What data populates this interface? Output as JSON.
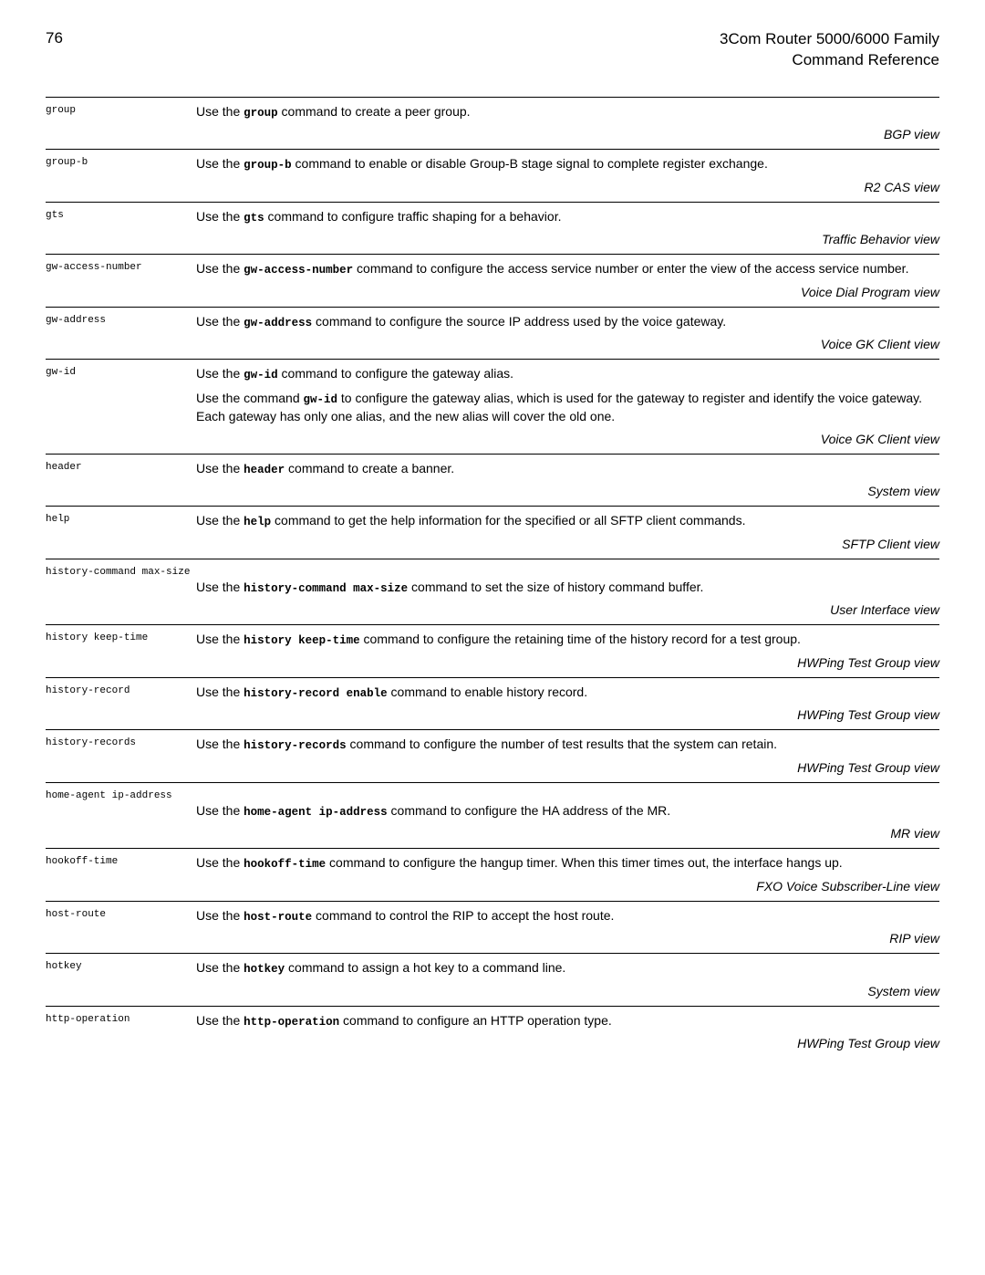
{
  "page": {
    "number": "76",
    "header_line1": "3Com Router 5000/6000 Family",
    "header_line2": "Command Reference"
  },
  "entries": [
    {
      "cmd": "group",
      "desc_parts": [
        {
          "t": "Use the ",
          "m": false
        },
        {
          "t": "group",
          "m": true
        },
        {
          "t": " command to create a peer group.",
          "m": false
        }
      ],
      "view": "BGP view"
    },
    {
      "cmd": "group-b",
      "desc_parts": [
        {
          "t": "Use the ",
          "m": false
        },
        {
          "t": "group-b",
          "m": true
        },
        {
          "t": " command to enable or disable Group-B stage signal to complete register exchange.",
          "m": false
        }
      ],
      "view": "R2 CAS view"
    },
    {
      "cmd": "gts",
      "desc_parts": [
        {
          "t": "Use the ",
          "m": false
        },
        {
          "t": "gts",
          "m": true
        },
        {
          "t": " command to configure traffic shaping for a behavior.",
          "m": false
        }
      ],
      "view": "Traffic Behavior view"
    },
    {
      "cmd": "gw-access-number",
      "desc_parts": [
        {
          "t": "Use the ",
          "m": false
        },
        {
          "t": "gw-access-number",
          "m": true
        },
        {
          "t": " command to configure the access service number or enter the view of the access service number.",
          "m": false
        }
      ],
      "view": "Voice Dial Program view"
    },
    {
      "cmd": "gw-address",
      "desc_parts": [
        {
          "t": "Use the ",
          "m": false
        },
        {
          "t": "gw-address",
          "m": true
        },
        {
          "t": " command to configure the source IP address used by the voice gateway.",
          "m": false
        }
      ],
      "view": "Voice GK Client view"
    },
    {
      "cmd": "gw-id",
      "desc_parts": [
        {
          "t": "Use the ",
          "m": false
        },
        {
          "t": "gw-id",
          "m": true
        },
        {
          "t": " command to configure the gateway alias.",
          "m": false
        }
      ],
      "desc2_parts": [
        {
          "t": "Use the command ",
          "m": false
        },
        {
          "t": "gw-id",
          "m": true
        },
        {
          "t": " to configure the gateway alias, which is used for the gateway to register and identify the voice gateway. Each gateway has only one alias, and the new alias will cover the old one.",
          "m": false
        }
      ],
      "view": "Voice GK Client view"
    },
    {
      "cmd": "header",
      "desc_parts": [
        {
          "t": "Use the ",
          "m": false
        },
        {
          "t": "header",
          "m": true
        },
        {
          "t": " command to create a banner.",
          "m": false
        }
      ],
      "view": "System view"
    },
    {
      "cmd": "help",
      "desc_parts": [
        {
          "t": "Use the ",
          "m": false
        },
        {
          "t": "help",
          "m": true
        },
        {
          "t": " command to get the help information for the specified or all SFTP client commands.",
          "m": false
        }
      ],
      "view": "SFTP Client view"
    },
    {
      "cmd": "history-command max-size",
      "full_label": true,
      "desc_parts": [
        {
          "t": "Use the ",
          "m": false
        },
        {
          "t": "history-command max-size",
          "m": true
        },
        {
          "t": " command to set the size of history command buffer.",
          "m": false
        }
      ],
      "view": "User Interface view"
    },
    {
      "cmd": "history keep-time",
      "desc_parts": [
        {
          "t": "Use the ",
          "m": false
        },
        {
          "t": "history keep-time",
          "m": true
        },
        {
          "t": " command to configure the retaining time of the history record for a test group.",
          "m": false
        }
      ],
      "view": "HWPing Test Group view"
    },
    {
      "cmd": "history-record",
      "desc_parts": [
        {
          "t": "Use the ",
          "m": false
        },
        {
          "t": "history-record enable",
          "m": true
        },
        {
          "t": " command to enable history record.",
          "m": false
        }
      ],
      "view": "HWPing Test Group view"
    },
    {
      "cmd": "history-records",
      "desc_parts": [
        {
          "t": "Use the ",
          "m": false
        },
        {
          "t": "history-records",
          "m": true
        },
        {
          "t": " command to configure the number of test results that the system can retain.",
          "m": false
        }
      ],
      "view": "HWPing Test Group view"
    },
    {
      "cmd": "home-agent ip-address",
      "full_label": true,
      "desc_parts": [
        {
          "t": "Use the ",
          "m": false
        },
        {
          "t": "home-agent ip-address",
          "m": true
        },
        {
          "t": " command to configure the HA address of the MR.",
          "m": false
        }
      ],
      "view": "MR view"
    },
    {
      "cmd": "hookoff-time",
      "desc_parts": [
        {
          "t": "Use the ",
          "m": false
        },
        {
          "t": "hookoff-time",
          "m": true
        },
        {
          "t": " command to configure the hangup timer. When this timer times out, the interface hangs up.",
          "m": false
        }
      ],
      "view": "FXO Voice Subscriber-Line view"
    },
    {
      "cmd": "host-route",
      "desc_parts": [
        {
          "t": "Use the ",
          "m": false
        },
        {
          "t": "host-route",
          "m": true
        },
        {
          "t": " command to control the RIP to accept the host route.",
          "m": false
        }
      ],
      "view": "RIP view"
    },
    {
      "cmd": "hotkey",
      "desc_parts": [
        {
          "t": "Use the ",
          "m": false
        },
        {
          "t": "hotkey",
          "m": true
        },
        {
          "t": " command to assign a hot key to a command line.",
          "m": false
        }
      ],
      "view": "System view"
    },
    {
      "cmd": "http-operation",
      "desc_parts": [
        {
          "t": "Use the ",
          "m": false
        },
        {
          "t": "http-operation",
          "m": true
        },
        {
          "t": " command to configure an HTTP operation type.",
          "m": false
        }
      ],
      "view": "HWPing Test Group view"
    }
  ]
}
